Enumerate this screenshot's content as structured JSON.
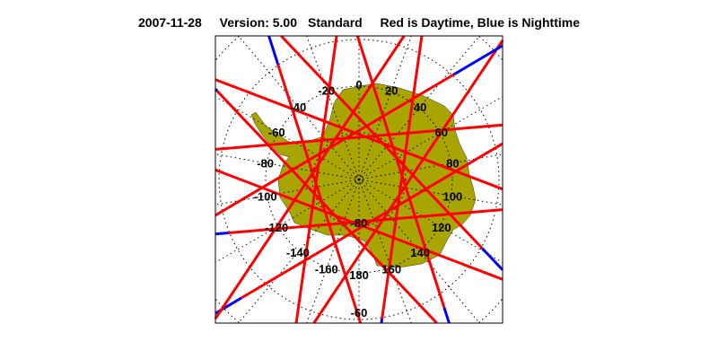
{
  "header": {
    "date": "2007-11-28",
    "version": "Version: 5.00",
    "mode": "Standard",
    "legend": "Red is Daytime, Blue is Nighttime"
  },
  "map": {
    "projection": "south-polar-stereographic",
    "longitude_labels": [
      "0",
      "20",
      "40",
      "60",
      "80",
      "100",
      "120",
      "140",
      "160",
      "180",
      "-160",
      "-140",
      "-120",
      "-100",
      "-80",
      "-60",
      "-40",
      "-20"
    ],
    "latitude_labels": [
      "-80",
      "-60"
    ],
    "colors": {
      "land": "#a8a400",
      "day_track": "#ff0000",
      "night_track": "#0000ff",
      "grid": "#000000"
    }
  }
}
